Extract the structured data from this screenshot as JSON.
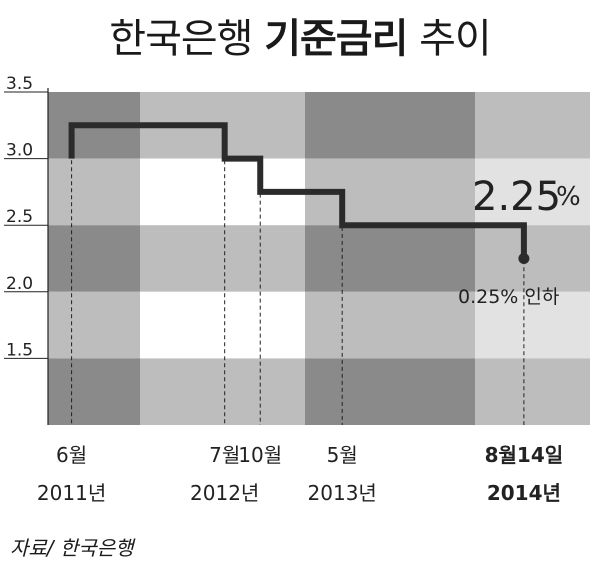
{
  "title": {
    "part1": "한국은행",
    "part2": "기준금리",
    "part3": "추이"
  },
  "source": "자료/ 한국은행",
  "chart_data": {
    "type": "line",
    "step": true,
    "title": "한국은행 기준금리 추이",
    "xlabel": "",
    "ylabel": "",
    "ylim": [
      1.0,
      3.5
    ],
    "yticks": [
      "3.5",
      "3.0",
      "2.5",
      "2.0",
      "1.5"
    ],
    "grid": true,
    "series": [
      {
        "name": "",
        "x": [
          "2011-06",
          "2012-07",
          "2012-10",
          "2013-05",
          "2014-08-14"
        ],
        "values": [
          3.25,
          3.0,
          2.75,
          2.5,
          2.25
        ]
      }
    ],
    "x_labels": [
      {
        "month": "6월",
        "year": "2011년",
        "bold": false
      },
      {
        "month": "7월",
        "year": "2012년",
        "bold": false
      },
      {
        "month": "10월",
        "year": "",
        "bold": false
      },
      {
        "month": "5월",
        "year": "2013년",
        "bold": false
      },
      {
        "month": "8월14일",
        "year": "2014년",
        "bold": true
      }
    ],
    "annotations": {
      "value": "2.25",
      "unit": "%",
      "note": "0.25% 인하"
    },
    "colors": {
      "line": "#2b2b2b",
      "band_dark": "#8a8a8a",
      "band_mid": "#bdbdbd",
      "band_light": "#e2e2e2",
      "band_white": "#ffffff"
    }
  }
}
